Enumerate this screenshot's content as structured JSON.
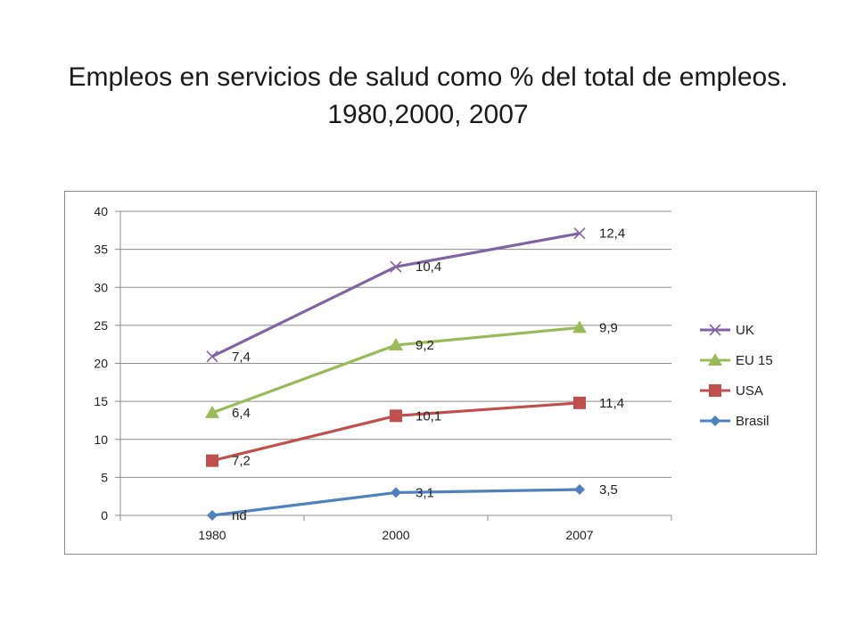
{
  "title": "Empleos en servicios de salud  como % del total de empleos.    1980,2000, 2007",
  "chart_data": {
    "type": "line",
    "categories": [
      "1980",
      "2000",
      "2007"
    ],
    "ylim": [
      0,
      40
    ],
    "yticks": [
      0,
      5,
      10,
      15,
      20,
      25,
      30,
      35,
      40
    ],
    "grid": true,
    "legend_position": "right",
    "series": [
      {
        "name": "UK",
        "color": "#8064A2",
        "marker": "x",
        "values": [
          20.9,
          32.7,
          37.1
        ],
        "labels": [
          "7,4",
          "10,4",
          "12,4"
        ]
      },
      {
        "name": "EU 15",
        "color": "#9BBB59",
        "marker": "triangle",
        "values": [
          13.5,
          22.4,
          24.7
        ],
        "labels": [
          "6,4",
          "9,2",
          "9,9"
        ]
      },
      {
        "name": "USA",
        "color": "#C0504D",
        "marker": "square",
        "values": [
          7.2,
          13.1,
          14.8
        ],
        "labels": [
          "7,2",
          "10,1",
          "11,4"
        ]
      },
      {
        "name": "Brasil",
        "color": "#4F81BD",
        "marker": "diamond",
        "values": [
          0,
          3.0,
          3.4
        ],
        "labels": [
          "nd",
          "3,1",
          "3,5"
        ]
      }
    ]
  }
}
